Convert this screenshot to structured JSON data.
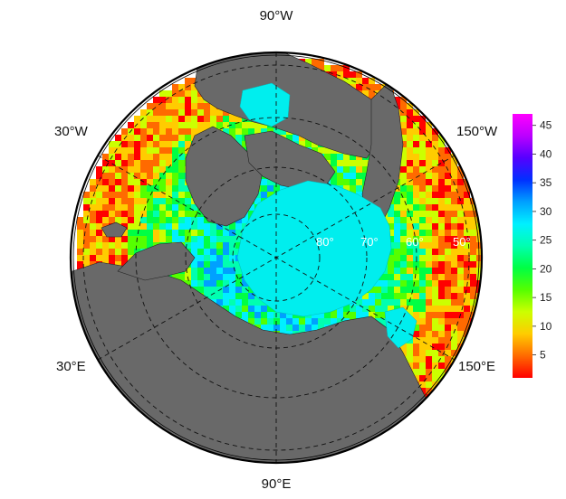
{
  "map": {
    "projection": "north-polar stereographic",
    "land_color": "#696969",
    "ice_color": "#00eeee",
    "graticule_color": "#111111"
  },
  "longitude_labels": {
    "top": "90°W",
    "bottom": "90°E",
    "upper_left": "30°W",
    "upper_right": "150°W",
    "lower_left": "30°E",
    "lower_right": "150°E"
  },
  "latitude_labels": [
    "80°",
    "70°",
    "60°",
    "50°"
  ],
  "colorbar": {
    "min": 1,
    "max": 47,
    "ticks": [
      "45",
      "40",
      "35",
      "30",
      "25",
      "20",
      "15",
      "10",
      "5"
    ],
    "tick_values": [
      45,
      40,
      35,
      30,
      25,
      20,
      15,
      10,
      5
    ],
    "colors": [
      "#ff0000",
      "#ff6a00",
      "#ffcc00",
      "#ccff00",
      "#55ff00",
      "#00ff44",
      "#00ffb0",
      "#00f0ff",
      "#00a0ff",
      "#0030ff",
      "#5500ff",
      "#bb00ff",
      "#ff00ff"
    ]
  }
}
